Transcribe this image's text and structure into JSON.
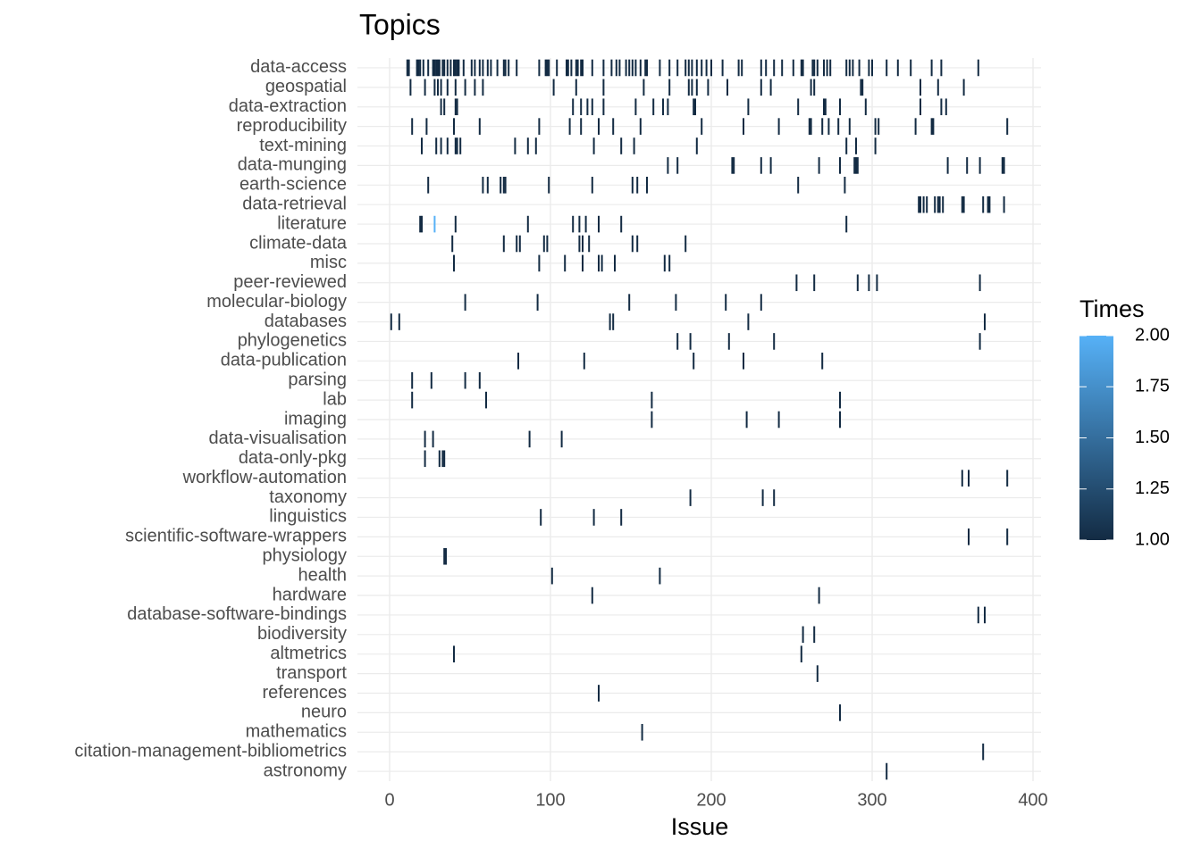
{
  "chart_data": {
    "type": "tile",
    "title": "Topics",
    "x_label": "Issue",
    "xlim": [
      -20,
      405
    ],
    "xticks": [
      0,
      100,
      200,
      300,
      400
    ],
    "grid": true,
    "legend": {
      "title": "Times",
      "lim": [
        1,
        2
      ],
      "low": "#132B43",
      "high": "#56B1F7",
      "position": "right",
      "ticks": [
        {
          "value": 1,
          "label": "1.00"
        },
        {
          "value": 1.25,
          "label": "1.25"
        },
        {
          "value": 1.5,
          "label": "1.50"
        },
        {
          "value": 1.75,
          "label": "1.75"
        },
        {
          "value": 2,
          "label": "2.00"
        }
      ]
    },
    "rows": [
      {
        "name": "data-access",
        "x": [
          11,
          12,
          17,
          18,
          19,
          21,
          24,
          27,
          28,
          29,
          30,
          31,
          33,
          34,
          36,
          38,
          40,
          41,
          42,
          43,
          46,
          51,
          53,
          56,
          58,
          61,
          63,
          67,
          71,
          72,
          74,
          79,
          93,
          97,
          98,
          99,
          104,
          110,
          111,
          113,
          116,
          117,
          119,
          120,
          126,
          133,
          138,
          141,
          143,
          147,
          149,
          151,
          153,
          156,
          159,
          160,
          168,
          174,
          179,
          184,
          186,
          188,
          191,
          194,
          197,
          200,
          207,
          217,
          219,
          231,
          234,
          239,
          244,
          251,
          256,
          257,
          263,
          264,
          266,
          270,
          272,
          274,
          284,
          286,
          288,
          292,
          298,
          300,
          309,
          316,
          324,
          337,
          343,
          366
        ],
        "times": [
          1,
          1,
          1,
          1,
          1,
          1,
          1,
          1,
          1,
          1,
          1,
          1,
          1,
          1,
          1,
          1,
          1,
          1,
          1,
          1,
          1,
          1,
          1,
          1,
          1,
          1,
          1,
          1,
          1,
          1,
          1,
          1,
          1,
          1,
          1,
          1,
          1,
          1,
          1,
          1,
          1,
          1,
          1,
          1,
          1,
          1,
          1,
          1,
          1,
          1,
          1,
          1,
          1,
          1,
          1,
          1,
          1,
          1,
          1,
          1,
          1,
          1,
          1,
          1,
          1,
          1,
          1,
          1,
          1,
          1,
          1,
          1,
          1,
          1,
          1,
          1,
          1,
          1,
          1,
          1,
          1,
          1,
          1,
          1,
          1,
          1,
          1,
          1,
          1,
          1,
          1,
          1,
          1,
          1
        ]
      },
      {
        "name": "geospatial",
        "x": [
          13,
          22,
          28,
          30,
          32,
          36,
          41,
          47,
          53,
          58,
          102,
          116,
          133,
          158,
          174,
          186,
          188,
          191,
          198,
          210,
          231,
          237,
          262,
          264,
          293,
          294,
          330,
          341,
          357
        ],
        "times": [
          1,
          1,
          1,
          1,
          1,
          1,
          1,
          1,
          1,
          1,
          1,
          1,
          1,
          1,
          1,
          1,
          1,
          1,
          1,
          1,
          1,
          1,
          1,
          1,
          1,
          1,
          1,
          1,
          1
        ]
      },
      {
        "name": "data-extraction",
        "x": [
          32,
          34,
          41,
          42,
          114,
          119,
          123,
          126,
          133,
          153,
          164,
          170,
          173,
          189,
          190,
          223,
          254,
          270,
          271,
          280,
          296,
          330,
          343,
          346
        ],
        "times": [
          1,
          1,
          1,
          1,
          1,
          1,
          1,
          1,
          1,
          1,
          1,
          1,
          1,
          1,
          1,
          1,
          1,
          1,
          1,
          1,
          1,
          1,
          1,
          1
        ]
      },
      {
        "name": "reproducibility",
        "x": [
          14,
          23,
          40,
          56,
          93,
          112,
          119,
          130,
          139,
          156,
          194,
          220,
          242,
          261,
          262,
          269,
          273,
          279,
          286,
          302,
          304,
          327,
          337,
          338,
          384
        ],
        "times": [
          1,
          1,
          1,
          1,
          1,
          1,
          1,
          1,
          1,
          1,
          1,
          1,
          1,
          1,
          1,
          1,
          1,
          1,
          1,
          1,
          1,
          1,
          1,
          1,
          1
        ]
      },
      {
        "name": "text-mining",
        "x": [
          20,
          29,
          32,
          36,
          41,
          42,
          44,
          78,
          86,
          91,
          127,
          144,
          152,
          191,
          284,
          290,
          302
        ],
        "times": [
          1,
          1,
          1,
          1,
          1,
          1,
          1,
          1,
          1,
          1,
          1,
          1,
          1,
          1,
          1,
          1,
          1
        ]
      },
      {
        "name": "data-munging",
        "x": [
          173,
          179,
          213,
          214,
          231,
          237,
          267,
          280,
          289,
          290,
          291,
          347,
          359,
          367,
          381,
          382
        ],
        "times": [
          1,
          1,
          1,
          1,
          1,
          1,
          1,
          1,
          1,
          1,
          1,
          1,
          1,
          1,
          1,
          1
        ]
      },
      {
        "name": "earth-science",
        "x": [
          24,
          58,
          61,
          69,
          71,
          72,
          99,
          126,
          151,
          154,
          160,
          254,
          283
        ],
        "times": [
          1,
          1,
          1,
          1,
          1,
          1,
          1,
          1,
          1,
          1,
          1,
          1,
          1
        ]
      },
      {
        "name": "data-retrieval",
        "x": [
          329,
          330,
          332,
          334,
          339,
          341,
          342,
          344,
          356,
          357,
          369,
          372,
          373,
          382
        ],
        "times": [
          1,
          1,
          1,
          1,
          1,
          1,
          1,
          1,
          1,
          1,
          1,
          1,
          1,
          1
        ]
      },
      {
        "name": "literature",
        "x": [
          19,
          20,
          28,
          41,
          86,
          114,
          118,
          122,
          130,
          144,
          284
        ],
        "times": [
          1,
          1,
          2,
          1,
          1,
          1,
          1,
          1,
          1,
          1,
          1
        ]
      },
      {
        "name": "climate-data",
        "x": [
          39,
          71,
          79,
          81,
          96,
          98,
          118,
          120,
          124,
          151,
          154,
          184
        ],
        "times": [
          1,
          1,
          1,
          1,
          1,
          1,
          1,
          1,
          1,
          1,
          1,
          1
        ]
      },
      {
        "name": "misc",
        "x": [
          40,
          93,
          109,
          120,
          130,
          132,
          140,
          171,
          174
        ],
        "times": [
          1,
          1,
          1,
          1,
          1,
          1,
          1,
          1,
          1
        ]
      },
      {
        "name": "peer-reviewed",
        "x": [
          253,
          264,
          291,
          298,
          303,
          367
        ],
        "times": [
          1,
          1,
          1,
          1,
          1,
          1
        ]
      },
      {
        "name": "molecular-biology",
        "x": [
          47,
          92,
          149,
          178,
          209,
          231
        ],
        "times": [
          1,
          1,
          1,
          1,
          1,
          1
        ]
      },
      {
        "name": "databases",
        "x": [
          1,
          6,
          137,
          139,
          223,
          370
        ],
        "times": [
          1,
          1,
          1,
          1,
          1,
          1
        ]
      },
      {
        "name": "phylogenetics",
        "x": [
          179,
          187,
          211,
          239,
          367
        ],
        "times": [
          1,
          1,
          1,
          1,
          1
        ]
      },
      {
        "name": "data-publication",
        "x": [
          80,
          121,
          189,
          220,
          269
        ],
        "times": [
          1,
          1,
          1,
          1,
          1
        ]
      },
      {
        "name": "parsing",
        "x": [
          14,
          26,
          47,
          56
        ],
        "times": [
          1,
          1,
          1,
          1
        ]
      },
      {
        "name": "lab",
        "x": [
          14,
          60,
          163,
          280
        ],
        "times": [
          1,
          1,
          1,
          1
        ]
      },
      {
        "name": "imaging",
        "x": [
          163,
          222,
          242,
          280
        ],
        "times": [
          1,
          1,
          1,
          1
        ]
      },
      {
        "name": "data-visualisation",
        "x": [
          22,
          27,
          87,
          107
        ],
        "times": [
          1,
          1,
          1,
          1
        ]
      },
      {
        "name": "data-only-pkg",
        "x": [
          22,
          31,
          33,
          34
        ],
        "times": [
          1,
          1,
          1,
          1
        ]
      },
      {
        "name": "workflow-automation",
        "x": [
          356,
          360,
          384
        ],
        "times": [
          1,
          1,
          1
        ]
      },
      {
        "name": "taxonomy",
        "x": [
          187,
          232,
          239
        ],
        "times": [
          1,
          1,
          1
        ]
      },
      {
        "name": "linguistics",
        "x": [
          94,
          127,
          144
        ],
        "times": [
          1,
          1,
          1
        ]
      },
      {
        "name": "scientific-software-wrappers",
        "x": [
          360,
          384
        ],
        "times": [
          1,
          1
        ]
      },
      {
        "name": "physiology",
        "x": [
          34,
          35
        ],
        "times": [
          1,
          1
        ]
      },
      {
        "name": "health",
        "x": [
          101,
          168
        ],
        "times": [
          1,
          1
        ]
      },
      {
        "name": "hardware",
        "x": [
          126,
          267
        ],
        "times": [
          1,
          1
        ]
      },
      {
        "name": "database-software-bindings",
        "x": [
          366,
          370
        ],
        "times": [
          1,
          1
        ]
      },
      {
        "name": "biodiversity",
        "x": [
          257,
          264
        ],
        "times": [
          1,
          1
        ]
      },
      {
        "name": "altmetrics",
        "x": [
          40,
          256
        ],
        "times": [
          1,
          1
        ]
      },
      {
        "name": "transport",
        "x": [
          266
        ],
        "times": [
          1
        ]
      },
      {
        "name": "references",
        "x": [
          130
        ],
        "times": [
          1
        ]
      },
      {
        "name": "neuro",
        "x": [
          280
        ],
        "times": [
          1
        ]
      },
      {
        "name": "mathematics",
        "x": [
          157
        ],
        "times": [
          1
        ]
      },
      {
        "name": "citation-management-bibliometrics",
        "x": [
          369
        ],
        "times": [
          1
        ]
      },
      {
        "name": "astronomy",
        "x": [
          309
        ],
        "times": [
          1
        ]
      }
    ]
  }
}
